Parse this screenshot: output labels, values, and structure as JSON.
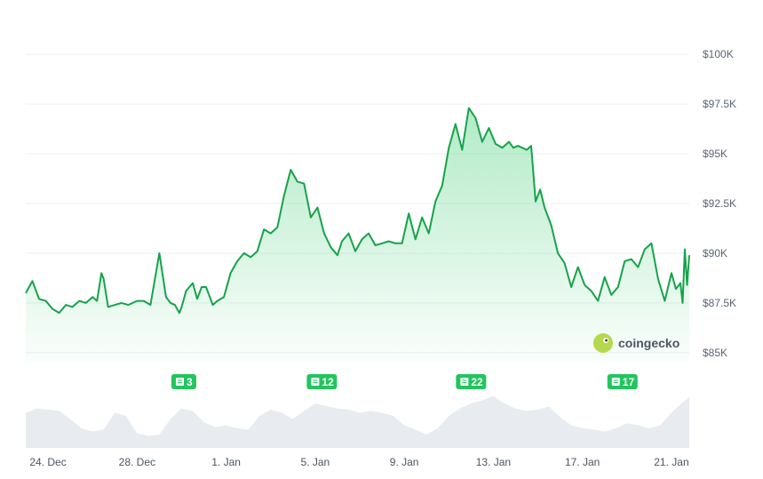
{
  "chart_data": {
    "type": "area",
    "title": "",
    "xlabel": "",
    "ylabel": "",
    "ylim": [
      84500,
      100500
    ],
    "y_ticks": [
      "$100K",
      "$97.5K",
      "$95K",
      "$92.5K",
      "$90K",
      "$87.5K",
      "$85K"
    ],
    "y_tick_values": [
      100000,
      97500,
      95000,
      92500,
      90000,
      87500,
      85000
    ],
    "x_ticks": [
      "24. Dec",
      "28. Dec",
      "1. Jan",
      "5. Jan",
      "9. Jan",
      "13. Jan",
      "17. Jan",
      "21. Jan"
    ],
    "x_tick_days": [
      1,
      5,
      9,
      13,
      17,
      21,
      25,
      29
    ],
    "x_range_days": [
      0,
      29.8
    ],
    "grid": true,
    "series": [
      {
        "kind": "price",
        "x_days": [
          0,
          0.3,
          0.6,
          0.9,
          1.2,
          1.5,
          1.8,
          2.1,
          2.4,
          2.7,
          3.0,
          3.2,
          3.4,
          3.5,
          3.7,
          4.0,
          4.3,
          4.6,
          5.0,
          5.3,
          5.6,
          6.0,
          6.3,
          6.5,
          6.7,
          6.9,
          7.0,
          7.2,
          7.5,
          7.7,
          7.9,
          8.1,
          8.4,
          8.6,
          8.9,
          9.2,
          9.5,
          9.8,
          10.1,
          10.4,
          10.7,
          11.0,
          11.3,
          11.6,
          11.9,
          12.2,
          12.5,
          12.8,
          13.1,
          13.4,
          13.7,
          14.0,
          14.2,
          14.5,
          14.8,
          15.1,
          15.4,
          15.7,
          16.0,
          16.3,
          16.6,
          16.9,
          17.2,
          17.5,
          17.8,
          18.1,
          18.4,
          18.7,
          19.0,
          19.3,
          19.6,
          19.9,
          20.2,
          20.5,
          20.8,
          21.1,
          21.4,
          21.7,
          21.9,
          22.1,
          22.3,
          22.5,
          22.7,
          22.9,
          23.1,
          23.3,
          23.6,
          23.9,
          24.2,
          24.5,
          24.8,
          25.1,
          25.4,
          25.7,
          26.0,
          26.3,
          26.6,
          26.9,
          27.2,
          27.5,
          27.8,
          28.1,
          28.4,
          28.7,
          29.0,
          29.2,
          29.4,
          29.5,
          29.6,
          29.7,
          29.8
        ],
        "values": [
          88000,
          88600,
          87700,
          87600,
          87200,
          87000,
          87400,
          87300,
          87600,
          87500,
          87800,
          87600,
          89000,
          88700,
          87300,
          87400,
          87500,
          87400,
          87600,
          87600,
          87400,
          90000,
          87800,
          87500,
          87400,
          87000,
          87300,
          88100,
          88500,
          87700,
          88300,
          88300,
          87400,
          87600,
          87800,
          89000,
          89600,
          90000,
          89800,
          90100,
          91200,
          91000,
          91300,
          92900,
          94200,
          93600,
          93500,
          91800,
          92300,
          91000,
          90300,
          89900,
          90600,
          91000,
          90100,
          90700,
          91000,
          90400,
          90500,
          90600,
          90500,
          90500,
          92000,
          90700,
          91800,
          91000,
          92600,
          93400,
          95300,
          96500,
          95200,
          97300,
          96800,
          95600,
          96300,
          95500,
          95300,
          95600,
          95300,
          95400,
          95300,
          95200,
          95400,
          92600,
          93200,
          92300,
          91400,
          90000,
          89500,
          88300,
          89300,
          88400,
          88100,
          87600,
          88800,
          87900,
          88300,
          89600,
          89700,
          89300,
          90200,
          90500,
          88700,
          87600,
          89000,
          88200,
          88500,
          87500,
          90200,
          88400,
          89900
        ]
      },
      {
        "kind": "volume",
        "x_days": [
          0,
          0.5,
          1.0,
          1.5,
          2.0,
          2.5,
          3.0,
          3.5,
          4.0,
          4.5,
          5.0,
          5.5,
          6.0,
          6.5,
          7.0,
          7.5,
          8.0,
          8.5,
          9.0,
          9.5,
          10.0,
          10.5,
          11.0,
          11.5,
          12.0,
          12.5,
          13.0,
          13.5,
          14.0,
          14.5,
          15.0,
          15.5,
          16.0,
          16.5,
          17.0,
          17.5,
          18.0,
          18.5,
          19.0,
          19.5,
          20.0,
          20.5,
          21.0,
          21.5,
          22.0,
          22.5,
          23.0,
          23.5,
          24.0,
          24.5,
          25.0,
          25.5,
          26.0,
          26.5,
          27.0,
          27.5,
          28.0,
          28.5,
          29.0,
          29.5,
          29.8
        ],
        "values": [
          0.55,
          0.62,
          0.6,
          0.58,
          0.45,
          0.3,
          0.25,
          0.28,
          0.55,
          0.5,
          0.22,
          0.18,
          0.2,
          0.45,
          0.62,
          0.58,
          0.4,
          0.32,
          0.35,
          0.3,
          0.28,
          0.5,
          0.6,
          0.55,
          0.45,
          0.58,
          0.7,
          0.66,
          0.62,
          0.6,
          0.55,
          0.58,
          0.55,
          0.5,
          0.35,
          0.28,
          0.2,
          0.3,
          0.5,
          0.62,
          0.7,
          0.75,
          0.82,
          0.7,
          0.62,
          0.58,
          0.6,
          0.65,
          0.48,
          0.35,
          0.3,
          0.28,
          0.25,
          0.3,
          0.38,
          0.35,
          0.3,
          0.35,
          0.55,
          0.72,
          0.8
        ]
      }
    ],
    "annotations": [
      {
        "text": "3",
        "x_day": 7.1
      },
      {
        "text": "12",
        "x_day": 13.3
      },
      {
        "text": "22",
        "x_day": 20.0
      },
      {
        "text": "17",
        "x_day": 26.8
      }
    ],
    "brand": "coingecko"
  }
}
